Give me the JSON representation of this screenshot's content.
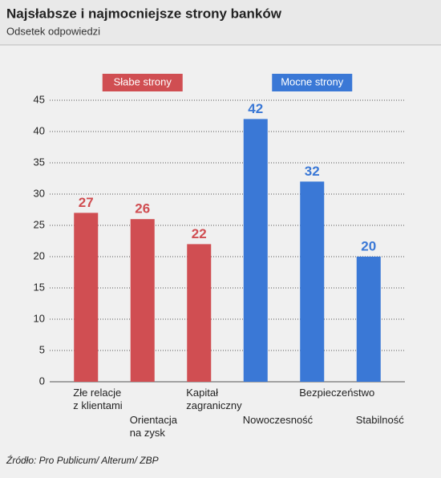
{
  "chart_data": {
    "type": "bar",
    "title": "Najsłabsze i najmocniejsze strony banków",
    "subtitle": "Odsetek odpowiedzi",
    "source": "Źródło: Pro Publicum/ Alterum/ ZBP",
    "categories": [
      "Złe relacje\nz klientami",
      "Orientacja\nna zysk",
      "Kapitał\nzagraniczny",
      "Nowoczesność",
      "Bezpieczeństwo",
      "Stabilność"
    ],
    "series": [
      {
        "name": "Słabe strony",
        "color": "#d04e52",
        "values": [
          27,
          26,
          22,
          null,
          null,
          null
        ]
      },
      {
        "name": "Mocne strony",
        "color": "#3a78d6",
        "values": [
          null,
          null,
          null,
          42,
          32,
          20
        ]
      }
    ],
    "ylim": [
      0,
      45
    ],
    "yticks": [
      0,
      5,
      10,
      15,
      20,
      25,
      30,
      35,
      40,
      45
    ],
    "grid": true
  }
}
